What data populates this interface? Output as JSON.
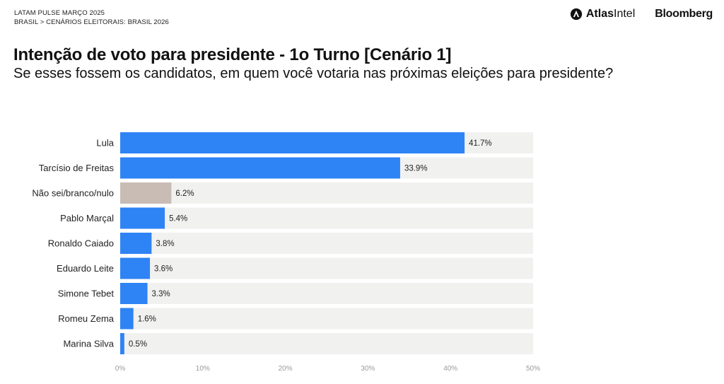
{
  "header": {
    "kicker_line1": "LATAM PULSE MARÇO 2025",
    "kicker_line2": "BRASIL > CENÁRIOS ELEITORAIS: BRASIL 2026",
    "logo_atlas_bold": "Atlas",
    "logo_atlas_regular": "Intel",
    "logo_bloomberg": "Bloomberg"
  },
  "chart_data": {
    "type": "bar",
    "orientation": "horizontal",
    "title": "Intenção de voto para presidente - 1o Turno [Cenário 1]",
    "subtitle": "Se esses fossem os candidatos, em quem você votaria nas próximas eleições para presidente?",
    "categories": [
      "Lula",
      "Tarcísio de Freitas",
      "Não sei/branco/nulo",
      "Pablo Marçal",
      "Ronaldo Caiado",
      "Eduardo Leite",
      "Simone Tebet",
      "Romeu Zema",
      "Marina Silva"
    ],
    "values": [
      41.7,
      33.9,
      6.2,
      5.4,
      3.8,
      3.6,
      3.3,
      1.6,
      0.5
    ],
    "value_labels": [
      "41.7%",
      "33.9%",
      "6.2%",
      "5.4%",
      "3.8%",
      "3.6%",
      "3.3%",
      "1.6%",
      "0.5%"
    ],
    "xlim": [
      0,
      50
    ],
    "xticks": [
      0,
      10,
      20,
      30,
      40,
      50
    ],
    "xtick_labels": [
      "0%",
      "10%",
      "20%",
      "30%",
      "40%",
      "50%"
    ],
    "grid": false,
    "colors": {
      "candidate": "#2e83f5",
      "undecided": "#c8bcb5",
      "track": "#f1f1f0",
      "value_text": "#222222",
      "tick_text": "#9a9a9a"
    },
    "bar_colors": [
      "#2e83f5",
      "#2e83f5",
      "#c8bcb5",
      "#2e83f5",
      "#2e83f5",
      "#2e83f5",
      "#2e83f5",
      "#2e83f5",
      "#2e83f5"
    ]
  }
}
